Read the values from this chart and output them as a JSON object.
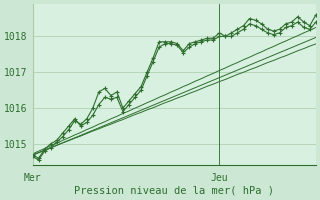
{
  "bg_color": "#cce8d4",
  "plot_bg_color": "#d8f0e0",
  "grid_color": "#aacaaa",
  "line_color": "#2d6e2d",
  "ylabel_text": "Pression niveau de la mer( hPa )",
  "xlim": [
    0,
    47
  ],
  "ylim": [
    1014.4,
    1018.9
  ],
  "yticks": [
    1015,
    1016,
    1017,
    1018
  ],
  "mer_x": 0,
  "jeu_x": 31,
  "vline_x": 31,
  "n_points": 48,
  "series_jagged": [
    [
      1014.65,
      1014.55,
      1014.8,
      1014.9,
      1015.05,
      1015.2,
      1015.4,
      1015.65,
      1015.55,
      1015.7,
      1016.0,
      1016.45,
      1016.55,
      1016.35,
      1016.45,
      1016.0,
      1016.2,
      1016.4,
      1016.6,
      1017.0,
      1017.4,
      1017.85,
      1017.85,
      1017.85,
      1017.8,
      1017.6,
      1017.8,
      1017.85,
      1017.9,
      1017.95,
      1017.95,
      1018.1,
      1018.0,
      1018.1,
      1018.2,
      1018.3,
      1018.5,
      1018.45,
      1018.35,
      1018.2,
      1018.15,
      1018.2,
      1018.35,
      1018.4,
      1018.55,
      1018.4,
      1018.3,
      1018.6
    ],
    [
      1014.7,
      1014.6,
      1014.85,
      1015.0,
      1015.1,
      1015.3,
      1015.5,
      1015.7,
      1015.5,
      1015.6,
      1015.8,
      1016.1,
      1016.3,
      1016.25,
      1016.3,
      1015.9,
      1016.1,
      1016.3,
      1016.5,
      1016.9,
      1017.3,
      1017.7,
      1017.8,
      1017.8,
      1017.75,
      1017.55,
      1017.7,
      1017.8,
      1017.85,
      1017.9,
      1017.9,
      1018.0,
      1018.0,
      1018.0,
      1018.1,
      1018.2,
      1018.35,
      1018.3,
      1018.2,
      1018.1,
      1018.05,
      1018.1,
      1018.25,
      1018.3,
      1018.4,
      1018.25,
      1018.2,
      1018.4
    ]
  ],
  "series_linear": [
    [
      1014.7,
      1014.76,
      1014.83,
      1014.89,
      1014.96,
      1015.03,
      1015.09,
      1015.16,
      1015.22,
      1015.29,
      1015.36,
      1015.42,
      1015.49,
      1015.55,
      1015.62,
      1015.68,
      1015.75,
      1015.82,
      1015.88,
      1015.95,
      1016.01,
      1016.08,
      1016.15,
      1016.21,
      1016.28,
      1016.34,
      1016.41,
      1016.47,
      1016.54,
      1016.61,
      1016.67,
      1016.74,
      1016.8,
      1016.87,
      1016.94,
      1017.0,
      1017.07,
      1017.13,
      1017.2,
      1017.27,
      1017.33,
      1017.4,
      1017.46,
      1017.53,
      1017.6,
      1017.66,
      1017.73,
      1017.79
    ],
    [
      1014.72,
      1014.8,
      1014.87,
      1014.95,
      1015.02,
      1015.1,
      1015.17,
      1015.25,
      1015.32,
      1015.4,
      1015.47,
      1015.55,
      1015.62,
      1015.7,
      1015.77,
      1015.85,
      1015.92,
      1016.0,
      1016.07,
      1016.15,
      1016.22,
      1016.3,
      1016.37,
      1016.45,
      1016.52,
      1016.6,
      1016.67,
      1016.75,
      1016.82,
      1016.9,
      1016.97,
      1017.05,
      1017.12,
      1017.2,
      1017.27,
      1017.35,
      1017.42,
      1017.5,
      1017.57,
      1017.65,
      1017.72,
      1017.8,
      1017.87,
      1017.95,
      1018.02,
      1018.1,
      1018.17,
      1018.25
    ],
    [
      1014.68,
      1014.75,
      1014.82,
      1014.89,
      1014.96,
      1015.03,
      1015.1,
      1015.17,
      1015.24,
      1015.31,
      1015.38,
      1015.45,
      1015.52,
      1015.59,
      1015.66,
      1015.73,
      1015.8,
      1015.87,
      1015.94,
      1016.01,
      1016.08,
      1016.15,
      1016.22,
      1016.29,
      1016.36,
      1016.43,
      1016.5,
      1016.57,
      1016.64,
      1016.71,
      1016.78,
      1016.85,
      1016.92,
      1016.99,
      1017.06,
      1017.13,
      1017.2,
      1017.27,
      1017.34,
      1017.41,
      1017.48,
      1017.55,
      1017.62,
      1017.69,
      1017.76,
      1017.83,
      1017.9,
      1017.97
    ]
  ]
}
